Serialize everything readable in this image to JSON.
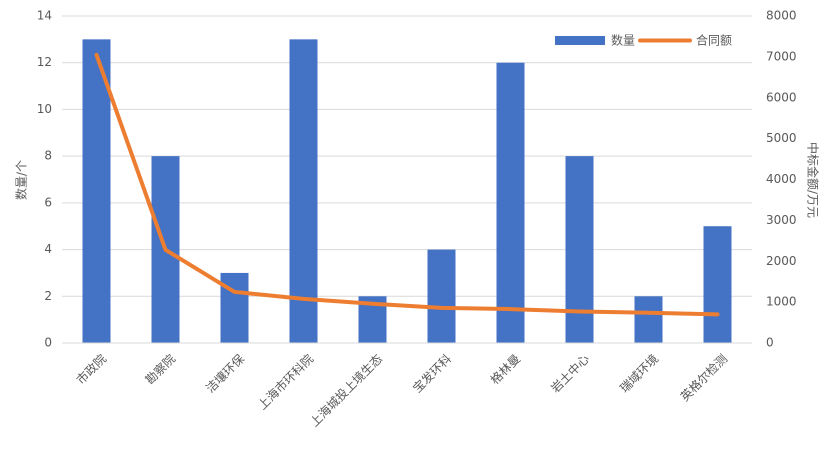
{
  "chart_data": {
    "type": "combo",
    "categories": [
      "市政院",
      "勘察院",
      "洁壤环保",
      "上海市环科院",
      "上海城投上境生态",
      "宝发环科",
      "格林曼",
      "岩土中心",
      "瑞域环境",
      "英格尔检测"
    ],
    "series": [
      {
        "name": "数量",
        "type": "bar",
        "color": "#4472c4",
        "values": [
          13,
          8,
          3,
          13,
          2,
          4,
          12,
          8,
          2,
          5
        ]
      },
      {
        "name": "合同额",
        "type": "line",
        "axis": "y2",
        "color": "#ed7d31",
        "values": [
          7050,
          2280,
          1250,
          1080,
          960,
          860,
          830,
          770,
          740,
          700
        ]
      }
    ],
    "ylabel": "数量/个",
    "y2label": "中标金额/万元",
    "ylim": [
      0,
      14
    ],
    "yticks": [
      0,
      2,
      4,
      6,
      8,
      10,
      12,
      14
    ],
    "y2lim": [
      0,
      8000
    ],
    "y2ticks": [
      0,
      1000,
      2000,
      3000,
      4000,
      5000,
      6000,
      7000,
      8000
    ],
    "grid": true,
    "legend": "top-right"
  }
}
